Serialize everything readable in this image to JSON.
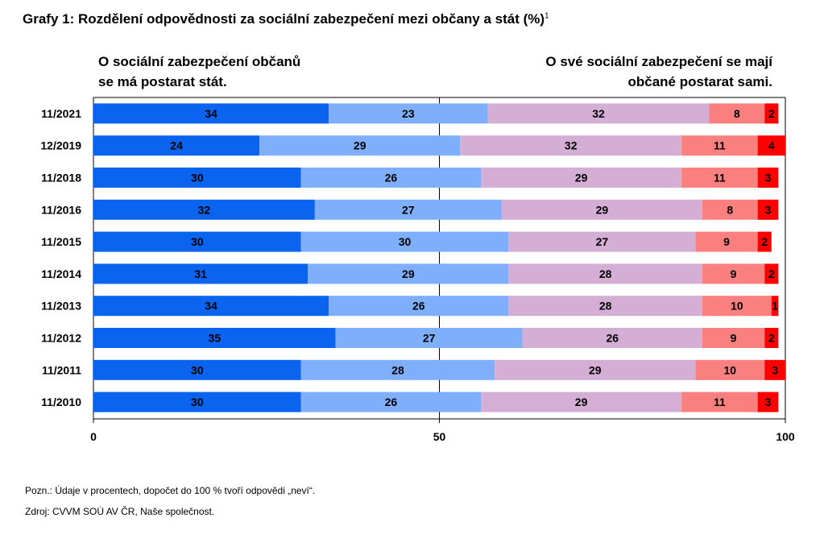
{
  "title": "Grafy 1: Rozdělení odpovědnosti za sociální zabezpečení mezi občany a stát (%)",
  "title_footnote": "1",
  "label_left": "O sociální zabezpečení občanů\nse má postarat stát.",
  "label_right": "O své sociální zabezpečení se mají\nobčané postarat sami.",
  "note": "Pozn.: Údaje v procentech, dopočet do 100 % tvoří odpovědi „neví“.",
  "source": "Zdroj: CVVM SOÚ AV ČR, Naše společnost.",
  "chart_data": {
    "type": "bar",
    "orientation": "horizontal",
    "stacked": true,
    "categories": [
      "11/2021",
      "12/2019",
      "11/2018",
      "11/2016",
      "11/2015",
      "11/2014",
      "11/2013",
      "11/2012",
      "11/2011",
      "11/2010"
    ],
    "series": [
      {
        "color": "#0a64f0",
        "values": [
          34,
          24,
          30,
          32,
          30,
          31,
          34,
          35,
          30,
          30
        ]
      },
      {
        "color": "#7faefa",
        "values": [
          23,
          29,
          26,
          27,
          30,
          29,
          26,
          27,
          28,
          26
        ]
      },
      {
        "color": "#d4aed4",
        "values": [
          32,
          32,
          29,
          29,
          27,
          28,
          28,
          26,
          29,
          29
        ]
      },
      {
        "color": "#fa8080",
        "values": [
          8,
          11,
          11,
          8,
          9,
          9,
          10,
          9,
          10,
          11
        ]
      },
      {
        "color": "#ff0000",
        "values": [
          2,
          4,
          3,
          3,
          2,
          2,
          1,
          2,
          3,
          3
        ]
      }
    ],
    "xlim": [
      0,
      100
    ],
    "xticks": [
      0,
      50,
      100
    ],
    "grid": false
  }
}
